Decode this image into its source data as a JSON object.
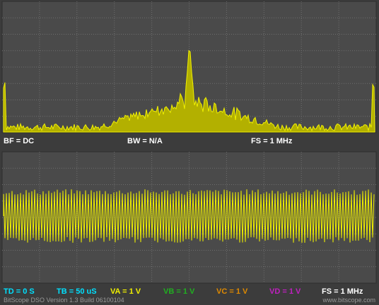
{
  "spectrum_status": {
    "bf": "BF = DC",
    "bw": "BW = N/A",
    "fs": "FS = 1 MHz"
  },
  "status": [
    "TD = 0 S",
    "TB = 50 uS",
    "VA = 1 V",
    "VB = 1 V",
    "VC = 1 V",
    "VD = 1 V",
    "FS = 1 MHz"
  ],
  "footer": {
    "version": "BitScope DSO Version 1.3 Build 06100104",
    "site": "www.bitscope.com"
  }
}
